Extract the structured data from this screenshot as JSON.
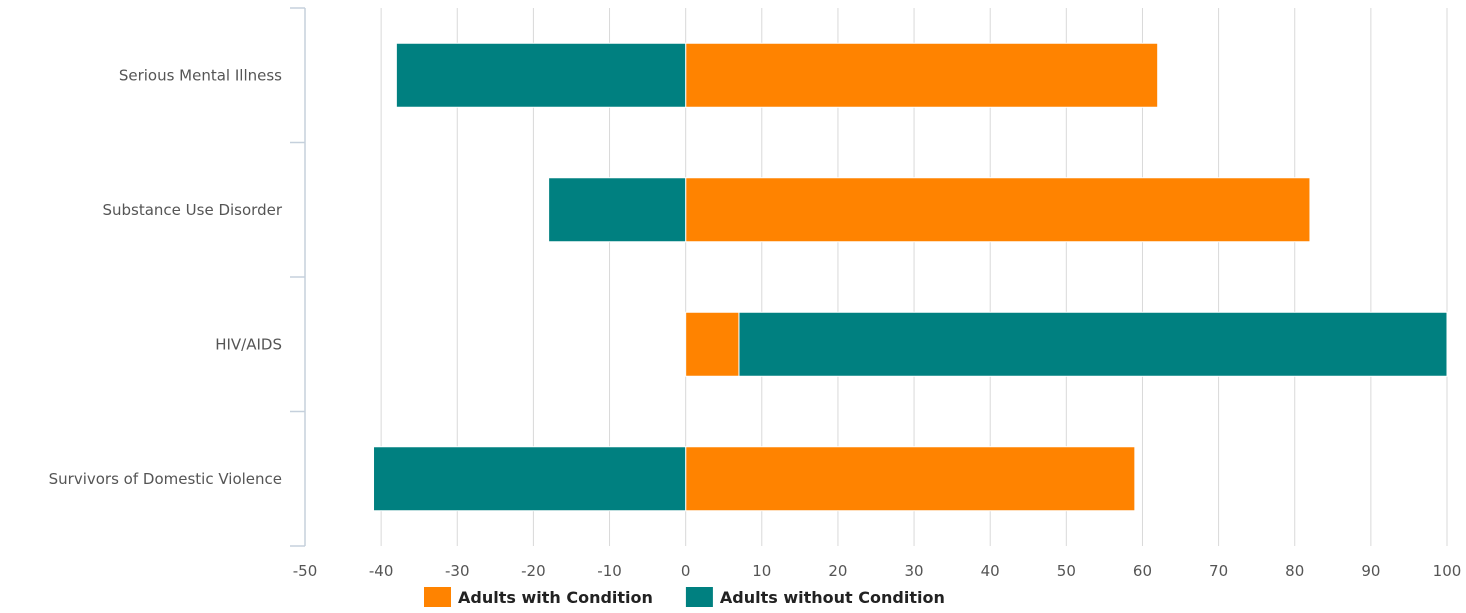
{
  "chart_data": {
    "type": "bar",
    "orientation": "horizontal",
    "stacking": "diverging",
    "title": "",
    "xlabel": "",
    "ylabel": "",
    "xlim": [
      -50,
      100
    ],
    "x_ticks": [
      -50,
      -40,
      -30,
      -20,
      -10,
      0,
      10,
      20,
      30,
      40,
      50,
      60,
      70,
      80,
      90,
      100
    ],
    "grid": "vertical",
    "legend_position": "bottom",
    "categories": [
      "Serious Mental Illness",
      "Substance Use Disorder",
      "HIV/AIDS",
      "Survivors of Domestic Violence"
    ],
    "series": [
      {
        "name": "Adults with Condition",
        "color": "#FF8300",
        "values": [
          62,
          82,
          7,
          59
        ]
      },
      {
        "name": "Adults without Condition",
        "color": "#008080",
        "values": [
          -38,
          -18,
          93,
          -41
        ]
      }
    ]
  }
}
